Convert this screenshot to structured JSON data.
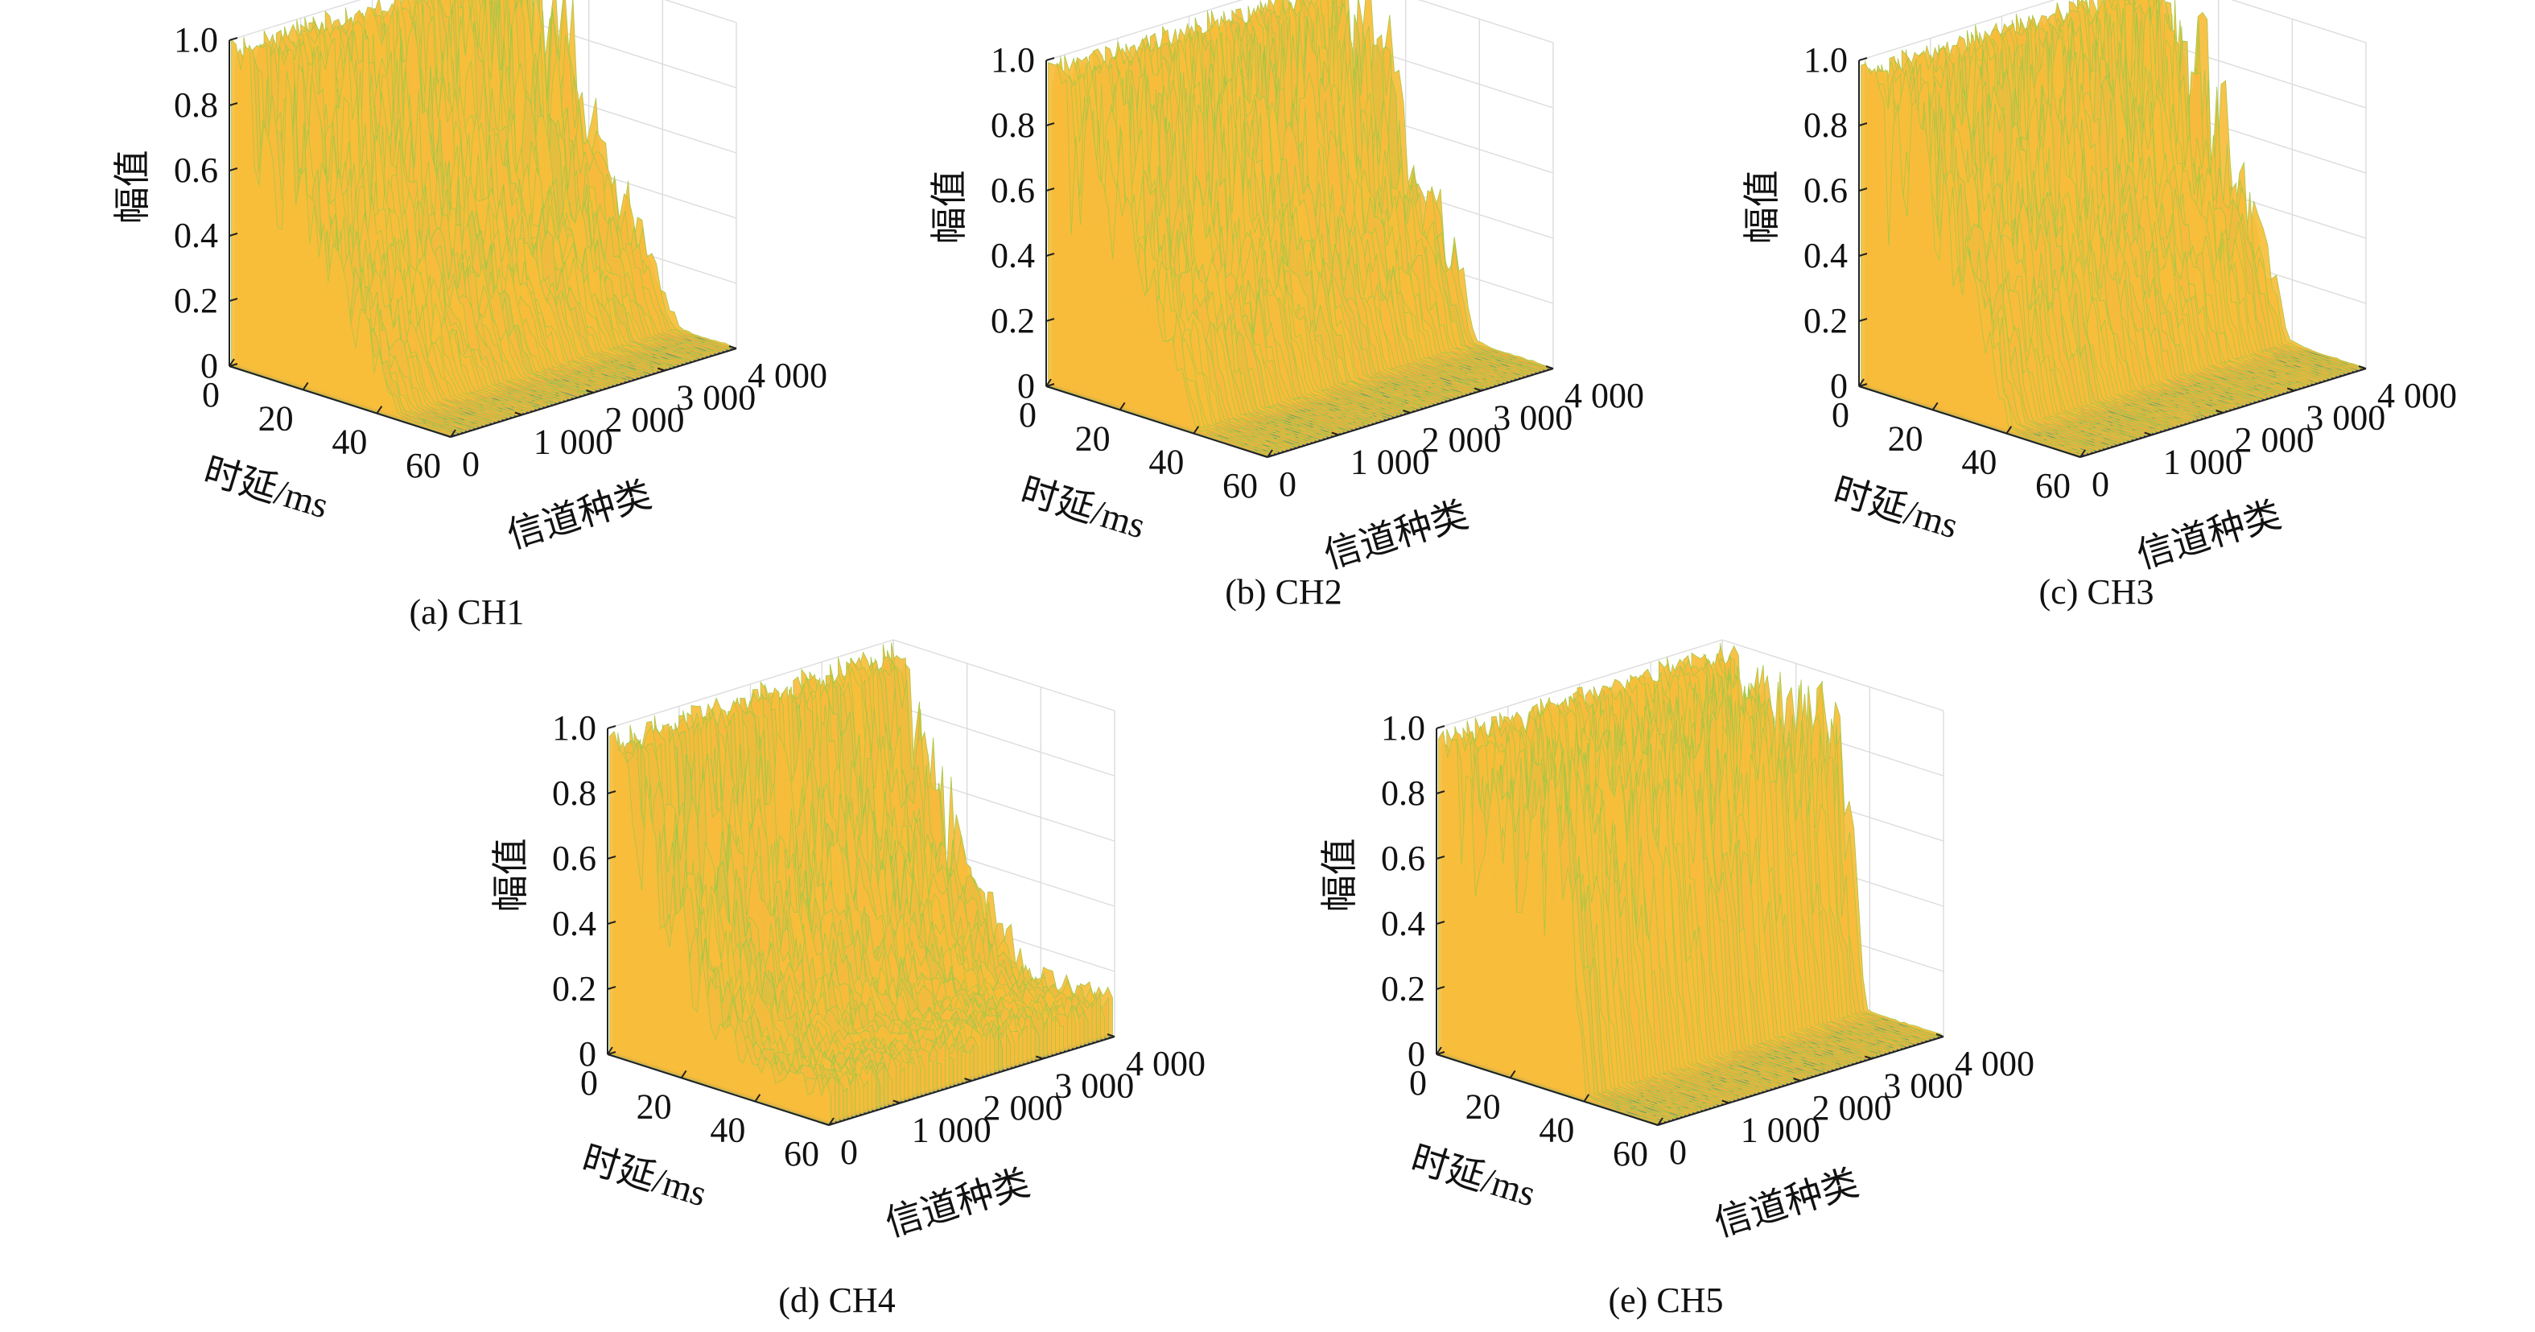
{
  "figure": {
    "captions": [
      "(a) CH1",
      "(b) CH2",
      "(c) CH3",
      "(d) CH4",
      "(e) CH5"
    ]
  },
  "chart_data": [
    {
      "type": "surface3d",
      "caption": "(a) CH1",
      "xlabel": "时延/ms",
      "ylabel": "信道种类",
      "zlabel": "幅值",
      "x_ticks": [
        "0",
        "20",
        "40",
        "60"
      ],
      "y_ticks": [
        "0",
        "1 000",
        "2 000",
        "3 000",
        "4 000"
      ],
      "z_ticks": [
        "0",
        "0.2",
        "0.4",
        "0.6",
        "0.8",
        "1.0"
      ],
      "xlim": [
        0,
        60
      ],
      "ylim": [
        0,
        4000
      ],
      "zlim": [
        0,
        1.0
      ],
      "colormap": [
        "#3e26a8",
        "#2d6ef1",
        "#1ea4d9",
        "#35c2a3",
        "#97ca47",
        "#f8ba3d",
        "#e9e21c"
      ],
      "envelope_delay_ms": [
        0,
        5,
        10,
        15,
        20,
        25,
        30,
        35,
        40,
        45,
        50,
        55,
        60
      ],
      "envelope_amplitude": [
        1.0,
        1.0,
        1.0,
        1.0,
        0.75,
        0.55,
        0.45,
        0.35,
        0.2,
        0.02,
        0.01,
        0.01,
        0.01
      ]
    },
    {
      "type": "surface3d",
      "caption": "(b) CH2",
      "xlabel": "时延/ms",
      "ylabel": "信道种类",
      "zlabel": "幅值",
      "x_ticks": [
        "0",
        "20",
        "40",
        "60"
      ],
      "y_ticks": [
        "0",
        "1 000",
        "2 000",
        "3 000",
        "4 000"
      ],
      "z_ticks": [
        "0",
        "0.2",
        "0.4",
        "0.6",
        "0.8",
        "1.0"
      ],
      "xlim": [
        0,
        60
      ],
      "ylim": [
        0,
        4000
      ],
      "zlim": [
        0,
        1.0
      ],
      "colormap": [
        "#3e26a8",
        "#2d6ef1",
        "#1ea4d9",
        "#35c2a3",
        "#97ca47",
        "#f8ba3d",
        "#e9e21c"
      ],
      "envelope_delay_ms": [
        0,
        5,
        10,
        15,
        20,
        25,
        30,
        35,
        40,
        45,
        50,
        55,
        60
      ],
      "envelope_amplitude": [
        1.0,
        1.0,
        1.0,
        1.0,
        0.8,
        0.55,
        0.45,
        0.3,
        0.02,
        0.01,
        0.01,
        0.01,
        0.01
      ]
    },
    {
      "type": "surface3d",
      "caption": "(c) CH3",
      "xlabel": "时延/ms",
      "ylabel": "信道种类",
      "zlabel": "幅值",
      "x_ticks": [
        "0",
        "20",
        "40",
        "60"
      ],
      "y_ticks": [
        "0",
        "1 000",
        "2 000",
        "3 000",
        "4 000"
      ],
      "z_ticks": [
        "0",
        "0.2",
        "0.4",
        "0.6",
        "0.8",
        "1.0"
      ],
      "xlim": [
        0,
        60
      ],
      "ylim": [
        0,
        4000
      ],
      "zlim": [
        0,
        1.0
      ],
      "colormap": [
        "#3e26a8",
        "#2d6ef1",
        "#1ea4d9",
        "#35c2a3",
        "#97ca47",
        "#f8ba3d",
        "#e9e21c"
      ],
      "envelope_delay_ms": [
        0,
        5,
        10,
        15,
        20,
        25,
        30,
        35,
        40,
        45,
        50,
        55,
        60
      ],
      "envelope_amplitude": [
        1.0,
        1.0,
        1.0,
        1.0,
        0.85,
        0.65,
        0.5,
        0.35,
        0.02,
        0.01,
        0.01,
        0.01,
        0.01
      ]
    },
    {
      "type": "surface3d",
      "caption": "(d) CH4",
      "xlabel": "时延/ms",
      "ylabel": "信道种类",
      "zlabel": "幅值",
      "x_ticks": [
        "0",
        "20",
        "40",
        "60"
      ],
      "y_ticks": [
        "0",
        "1 000",
        "2 000",
        "3 000",
        "4 000"
      ],
      "z_ticks": [
        "0",
        "0.2",
        "0.4",
        "0.6",
        "0.8",
        "1.0"
      ],
      "xlim": [
        0,
        60
      ],
      "ylim": [
        0,
        4000
      ],
      "zlim": [
        0,
        1.0
      ],
      "colormap": [
        "#3e26a8",
        "#2d6ef1",
        "#1ea4d9",
        "#35c2a3",
        "#97ca47",
        "#f8ba3d",
        "#e9e21c"
      ],
      "envelope_delay_ms": [
        0,
        5,
        10,
        15,
        20,
        25,
        30,
        35,
        40,
        45,
        50,
        55,
        60
      ],
      "envelope_amplitude": [
        1.0,
        1.0,
        0.9,
        0.7,
        0.55,
        0.4,
        0.3,
        0.2,
        0.15,
        0.15,
        0.15,
        0.15,
        0.15
      ]
    },
    {
      "type": "surface3d",
      "caption": "(e) CH5",
      "xlabel": "时延/ms",
      "ylabel": "信道种类",
      "zlabel": "幅值",
      "x_ticks": [
        "0",
        "20",
        "40",
        "60"
      ],
      "y_ticks": [
        "0",
        "1 000",
        "2 000",
        "3 000",
        "4 000"
      ],
      "z_ticks": [
        "0",
        "0.2",
        "0.4",
        "0.6",
        "0.8",
        "1.0"
      ],
      "xlim": [
        0,
        60
      ],
      "ylim": [
        0,
        4000
      ],
      "zlim": [
        0,
        1.0
      ],
      "colormap": [
        "#3e26a8",
        "#2d6ef1",
        "#1ea4d9",
        "#35c2a3",
        "#97ca47",
        "#f8ba3d",
        "#e9e21c"
      ],
      "envelope_delay_ms": [
        0,
        5,
        10,
        15,
        20,
        25,
        30,
        35,
        40,
        45,
        50,
        55,
        60
      ],
      "envelope_amplitude": [
        1.0,
        1.0,
        1.0,
        1.0,
        1.0,
        1.0,
        1.0,
        0.85,
        0.02,
        0.01,
        0.01,
        0.01,
        0.01
      ]
    }
  ]
}
